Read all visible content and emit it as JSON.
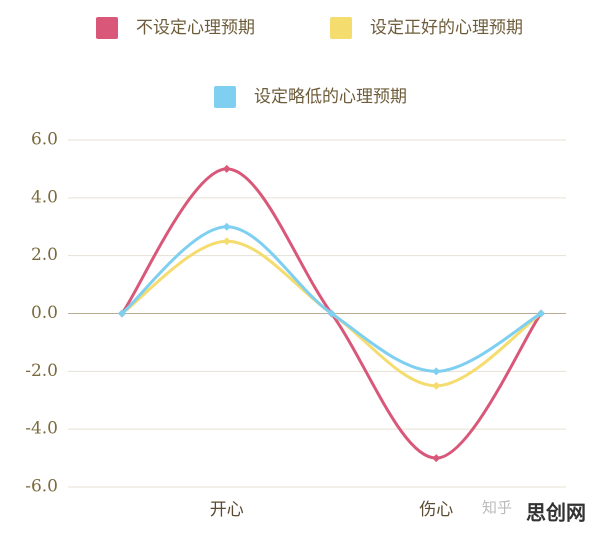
{
  "chart_data": {
    "type": "line",
    "categories": [
      null,
      "开心",
      null,
      "伤心",
      null
    ],
    "series": [
      {
        "name": "不设定心理预期",
        "color": "#d9587a",
        "values": [
          0,
          5,
          0,
          -5,
          0
        ]
      },
      {
        "name": "设定正好的心理预期",
        "color": "#f5dc6e",
        "values": [
          0,
          2.5,
          0,
          -2.5,
          0
        ]
      },
      {
        "name": "设定略低的心理预期",
        "color": "#7ecff0",
        "values": [
          0,
          3,
          0,
          -2,
          0
        ]
      }
    ],
    "ylim": [
      -6,
      6
    ],
    "yticks": [
      {
        "value": -6,
        "label": "-6.0"
      },
      {
        "value": -4,
        "label": "-4.0"
      },
      {
        "value": -2,
        "label": "-2.0"
      },
      {
        "value": 0,
        "label": "0.0"
      },
      {
        "value": 2,
        "label": "2.0"
      },
      {
        "value": 4,
        "label": "4.0"
      },
      {
        "value": 6,
        "label": "6.0"
      }
    ],
    "grid": true
  },
  "watermark": {
    "source": "知乎",
    "site": "思创网"
  }
}
